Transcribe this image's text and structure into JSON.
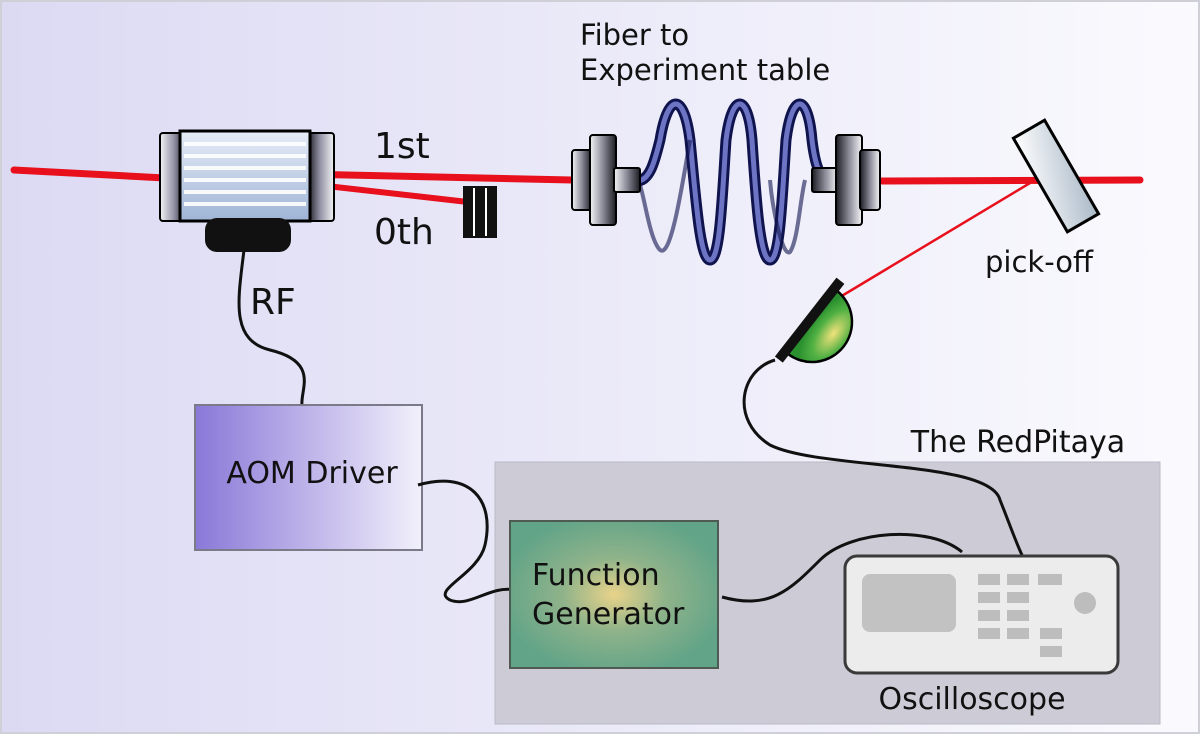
{
  "labels": {
    "fiber_line1": "Fiber to",
    "fiber_line2": "Experiment table",
    "first_order": "1st",
    "zeroth_order": "0th",
    "rf": "RF",
    "pickoff": "pick-off",
    "aom_driver": "AOM Driver",
    "redpitaya": "The RedPitaya",
    "function_gen_line1": "Function",
    "function_gen_line2": "Generator",
    "oscilloscope": "Oscilloscope"
  },
  "colors": {
    "background_left": "#dcdaf3",
    "background_right": "#fafafe",
    "laser": "#e8101c",
    "fiber": "#1a1f7a",
    "redpitaya_box": "#cdcbd5",
    "aom_driver_left": "#8a78d8",
    "aom_driver_right": "#f2f0fb",
    "function_generator": "#6aa98b",
    "photodiode": "#3aa33c",
    "oscilloscope_body": "#ececec",
    "oscilloscope_screen": "#c2c2c2",
    "oscilloscope_keys": "#bdbdbd"
  },
  "icons": {
    "aom": "acousto-optic-modulator-icon",
    "beam_block": "beam-dump-icon",
    "fiber_coupler_in": "fiber-coupler-icon",
    "fiber_coupler_out": "fiber-coupler-icon",
    "pickoff_mirror": "mirror-icon",
    "photodiode": "photodiode-icon",
    "oscilloscope": "oscilloscope-icon"
  }
}
